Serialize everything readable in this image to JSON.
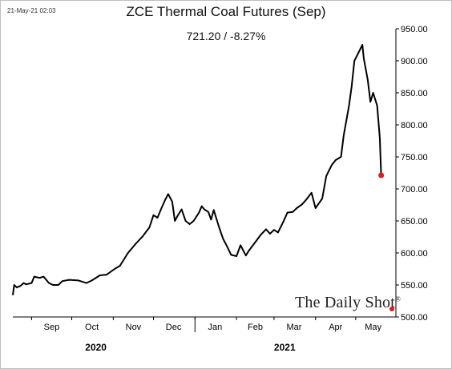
{
  "timestamp": "21-May-21 02:03",
  "watermark": "The Daily Shot",
  "watermark_mark": "®",
  "value_label": "721.20  /  -8.27%",
  "colors": {
    "line": "#000000",
    "last_point": "#e11919"
  },
  "chart_data": {
    "type": "line",
    "title": "ZCE Thermal Coal Futures (Sep)",
    "xlabel": "",
    "ylabel": "",
    "ylim": [
      500,
      950
    ],
    "yticks": [
      500,
      550,
      600,
      650,
      700,
      750,
      800,
      850,
      900,
      950
    ],
    "ytick_labels": [
      "500.00",
      "550.00",
      "600.00",
      "650.00",
      "700.00",
      "750.00",
      "800.00",
      "850.00",
      "900.00",
      "950.00"
    ],
    "xlim": [
      "2020-08-18",
      "2021-05-31"
    ],
    "month_labels": [
      "Sep",
      "Oct",
      "Nov",
      "Dec",
      "Jan",
      "Feb",
      "Mar",
      "Apr",
      "May"
    ],
    "month_label_dates": [
      "2020-09-16",
      "2020-10-16",
      "2020-11-16",
      "2020-12-16",
      "2021-01-16",
      "2021-02-15",
      "2021-03-16",
      "2021-04-16",
      "2021-05-14"
    ],
    "month_tick_dates": [
      "2020-09-01",
      "2020-10-01",
      "2020-11-01",
      "2020-12-01",
      "2021-01-01",
      "2021-02-01",
      "2021-03-01",
      "2021-04-01",
      "2021-05-01"
    ],
    "year_divider_date": "2021-01-01",
    "year_labels": [
      "2020",
      "2021"
    ],
    "year_label_dates": [
      "2020-10-19",
      "2021-03-09"
    ],
    "grid": false,
    "legend": "none",
    "series": [
      {
        "x": [
          "2020-08-18",
          "2020-08-19",
          "2020-08-21",
          "2020-08-24",
          "2020-08-26",
          "2020-08-28",
          "2020-09-01",
          "2020-09-03",
          "2020-09-07",
          "2020-09-10",
          "2020-09-14",
          "2020-09-17",
          "2020-09-21",
          "2020-09-24",
          "2020-09-29",
          "2020-10-06",
          "2020-10-12",
          "2020-10-16",
          "2020-10-22",
          "2020-10-27",
          "2020-11-02",
          "2020-11-06",
          "2020-11-12",
          "2020-11-18",
          "2020-11-23",
          "2020-11-28",
          "2020-12-01",
          "2020-12-04",
          "2020-12-07",
          "2020-12-10",
          "2020-12-12",
          "2020-12-15",
          "2020-12-17",
          "2020-12-19",
          "2020-12-22",
          "2020-12-25",
          "2020-12-28",
          "2020-12-31",
          "2021-01-04",
          "2021-01-06",
          "2021-01-08",
          "2021-01-11",
          "2021-01-13",
          "2021-01-15",
          "2021-01-19",
          "2021-01-22",
          "2021-01-25",
          "2021-01-28",
          "2021-02-01",
          "2021-02-04",
          "2021-02-08",
          "2021-02-10",
          "2021-02-19",
          "2021-02-23",
          "2021-02-26",
          "2021-03-01",
          "2021-03-04",
          "2021-03-08",
          "2021-03-11",
          "2021-03-15",
          "2021-03-18",
          "2021-03-22",
          "2021-03-25",
          "2021-03-29",
          "2021-04-01",
          "2021-04-06",
          "2021-04-09",
          "2021-04-13",
          "2021-04-16",
          "2021-04-20",
          "2021-04-22",
          "2021-04-26",
          "2021-04-28",
          "2021-04-30",
          "2021-05-06",
          "2021-05-07",
          "2021-05-10",
          "2021-05-12",
          "2021-05-14",
          "2021-05-17",
          "2021-05-19",
          "2021-05-20"
        ],
        "y": [
          534,
          550,
          546,
          549,
          553,
          551,
          553,
          563,
          561,
          563,
          553,
          550,
          550,
          556,
          558,
          557,
          553,
          557,
          565,
          566,
          575,
          580,
          600,
          615,
          626,
          640,
          659,
          655,
          670,
          684,
          692,
          680,
          650,
          658,
          668,
          650,
          645,
          650,
          663,
          673,
          668,
          664,
          652,
          667,
          640,
          622,
          610,
          597,
          595,
          612,
          596,
          603,
          628,
          637,
          630,
          636,
          632,
          649,
          663,
          664,
          670,
          676,
          683,
          694,
          670,
          685,
          720,
          737,
          745,
          750,
          783,
          830,
          860,
          900,
          925,
          904,
          870,
          836,
          850,
          830,
          780,
          721.2
        ]
      }
    ]
  }
}
